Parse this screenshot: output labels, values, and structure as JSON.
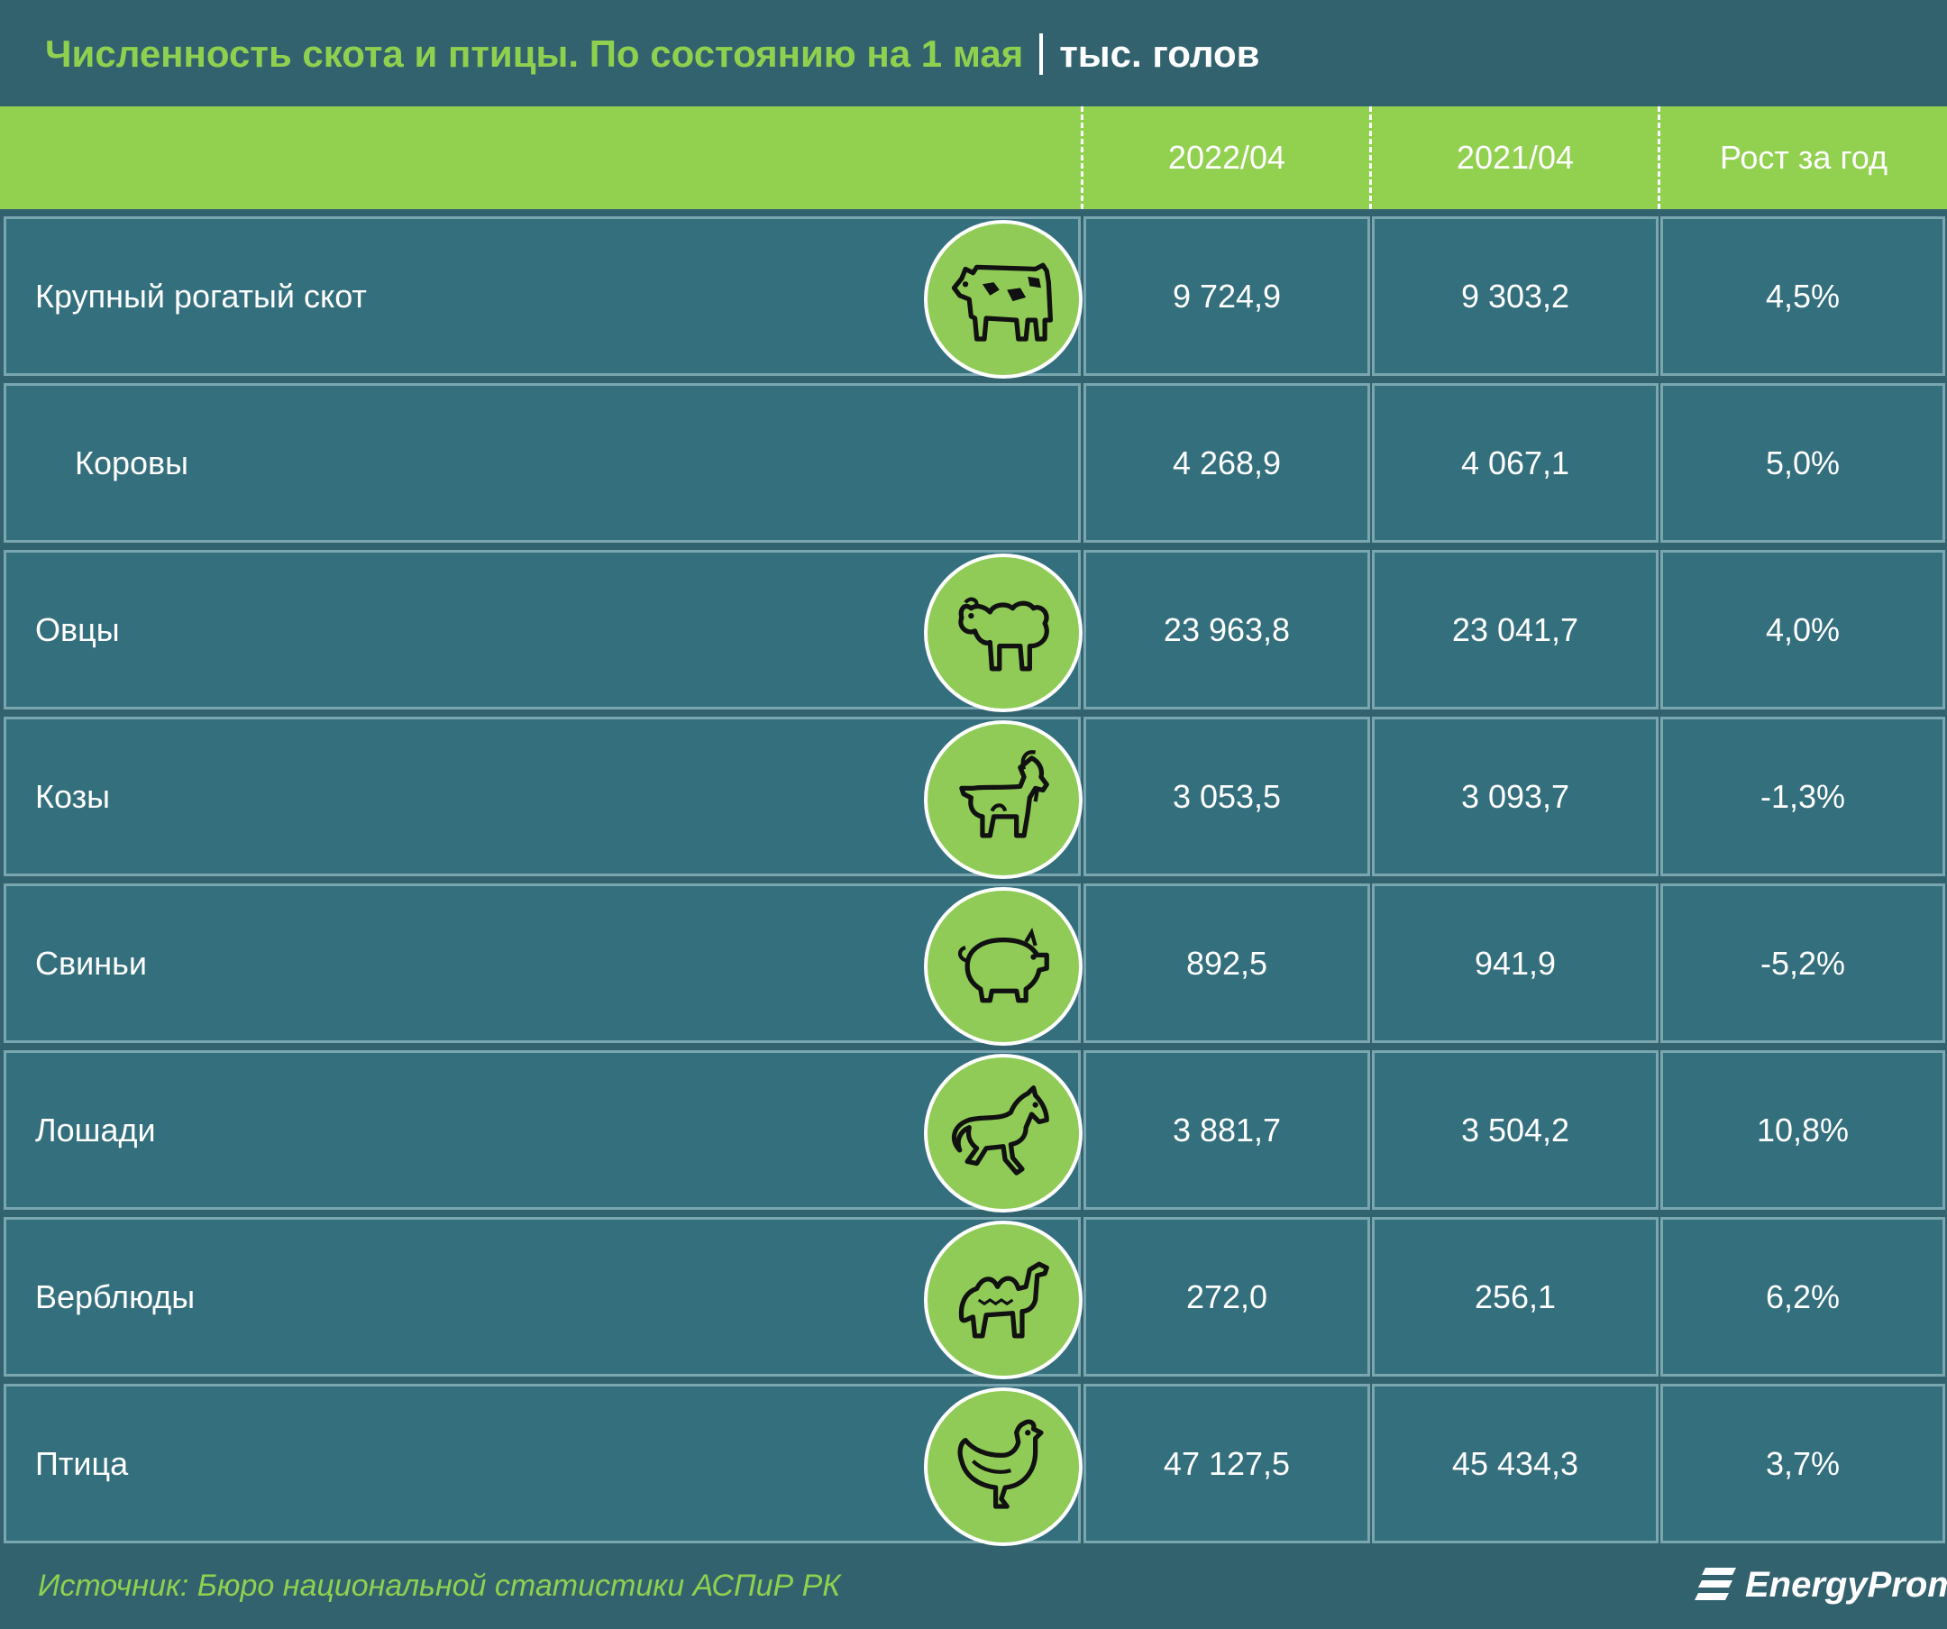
{
  "title": {
    "main": "Численность скота и птицы. По состоянию на 1 мая",
    "unit": "тыс. голов"
  },
  "chart_data": {
    "type": "table",
    "columns": [
      "2022/04",
      "2021/04",
      "Рост за год"
    ],
    "rows": [
      {
        "label": "Крупный рогатый скот",
        "icon": "cow-icon",
        "sub": false,
        "v2022": "9 724,9",
        "v2021": "9 303,2",
        "growth": "4,5%"
      },
      {
        "label": "Коровы",
        "icon": "",
        "sub": true,
        "v2022": "4 268,9",
        "v2021": "4 067,1",
        "growth": "5,0%"
      },
      {
        "label": "Овцы",
        "icon": "sheep-icon",
        "sub": false,
        "v2022": "23 963,8",
        "v2021": "23 041,7",
        "growth": "4,0%"
      },
      {
        "label": "Козы",
        "icon": "goat-icon",
        "sub": false,
        "v2022": "3 053,5",
        "v2021": "3 093,7",
        "growth": "-1,3%"
      },
      {
        "label": "Свиньи",
        "icon": "pig-icon",
        "sub": false,
        "v2022": "892,5",
        "v2021": "941,9",
        "growth": "-5,2%"
      },
      {
        "label": "Лошади",
        "icon": "horse-icon",
        "sub": false,
        "v2022": "3 881,7",
        "v2021": "3 504,2",
        "growth": "10,8%"
      },
      {
        "label": "Верблюды",
        "icon": "camel-icon",
        "sub": false,
        "v2022": "272,0",
        "v2021": "256,1",
        "growth": "6,2%"
      },
      {
        "label": "Птица",
        "icon": "chicken-icon",
        "sub": false,
        "v2022": "47 127,5",
        "v2021": "45 434,3",
        "growth": "3,7%"
      }
    ]
  },
  "footer": {
    "source": "Источник: Бюро национальной статистики АСПиР РК",
    "logo_text": "EnergyProm"
  },
  "colors": {
    "background": "#33626f",
    "accent_green": "#92d050",
    "cell": "#346f7d",
    "border": "#7aa6b0"
  }
}
